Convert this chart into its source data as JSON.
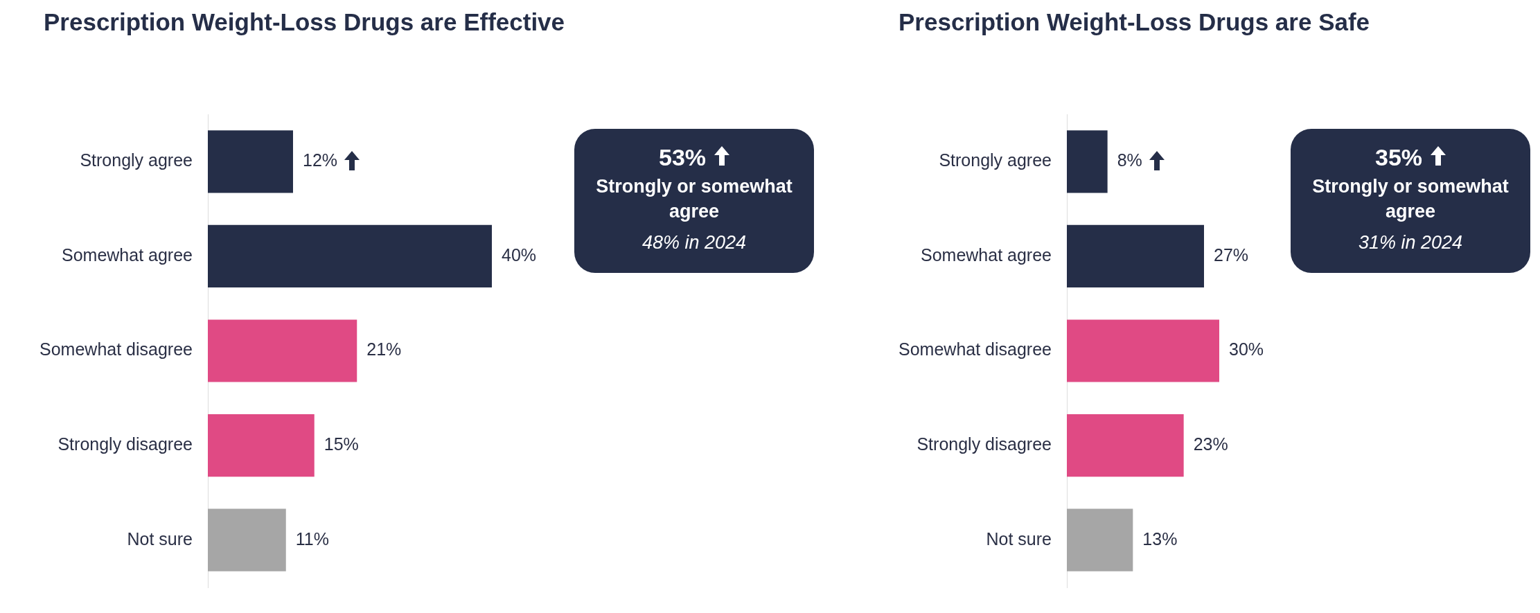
{
  "chart_data": [
    {
      "type": "bar",
      "orientation": "horizontal",
      "title": "Prescription Weight-Loss Drugs are Effective",
      "categories": [
        "Strongly agree",
        "Somewhat agree",
        "Somewhat disagree",
        "Strongly disagree",
        "Not sure"
      ],
      "values": [
        12,
        40,
        21,
        15,
        11
      ],
      "value_labels": [
        "12%",
        "40%",
        "21%",
        "15%",
        "11%"
      ],
      "colors": [
        "#252e48",
        "#252e48",
        "#e04a84",
        "#e04a84",
        "#a6a6a6"
      ],
      "annotations": [
        "53%",
        "Strongly or somewhat agree",
        "48% in 2024"
      ]
    },
    {
      "type": "bar",
      "orientation": "horizontal",
      "title": "Prescription Weight-Loss Drugs are Safe",
      "categories": [
        "Strongly agree",
        "Somewhat agree",
        "Somewhat disagree",
        "Strongly disagree",
        "Not sure"
      ],
      "values": [
        8,
        27,
        30,
        23,
        13
      ],
      "value_labels": [
        "8%",
        "27%",
        "30%",
        "23%",
        "13%"
      ],
      "colors": [
        "#252e48",
        "#252e48",
        "#e04a84",
        "#e04a84",
        "#a6a6a6"
      ],
      "annotations": [
        "35%",
        "Strongly or somewhat agree",
        "31% in 2024"
      ]
    }
  ]
}
